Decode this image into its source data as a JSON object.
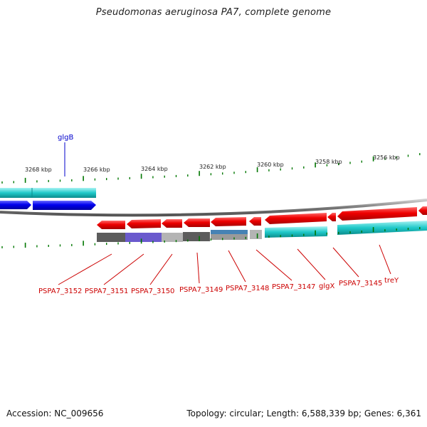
{
  "title": "Pseudomonas aeruginosa PA7, complete genome",
  "footer": {
    "accession": "Accession: NC_009656",
    "summary": "Topology: circular; Length: 6,588,339 bp; Genes: 6,361"
  },
  "scale_labels": [
    "3268 kbp",
    "3266 kbp",
    "3264 kbp",
    "3262 kbp",
    "3260 kbp",
    "3258 kbp",
    "3256 kbp"
  ],
  "top_gene_label": "glgB",
  "gene_labels": [
    "PSPA7_3152",
    "PSPA7_3151",
    "PSPA7_3150",
    "PSPA7_3149",
    "PSPA7_3148",
    "PSPA7_3147",
    "glgX",
    "PSPA7_3145",
    "treY"
  ],
  "colors": {
    "forward_gene": "#0000ee",
    "reverse_gene": "#ee0000",
    "cds_track": "#1fc9c9",
    "backbone": "#777777",
    "tick": "#007700",
    "label_red": "#cc0000",
    "label_blue": "#0000cc"
  }
}
